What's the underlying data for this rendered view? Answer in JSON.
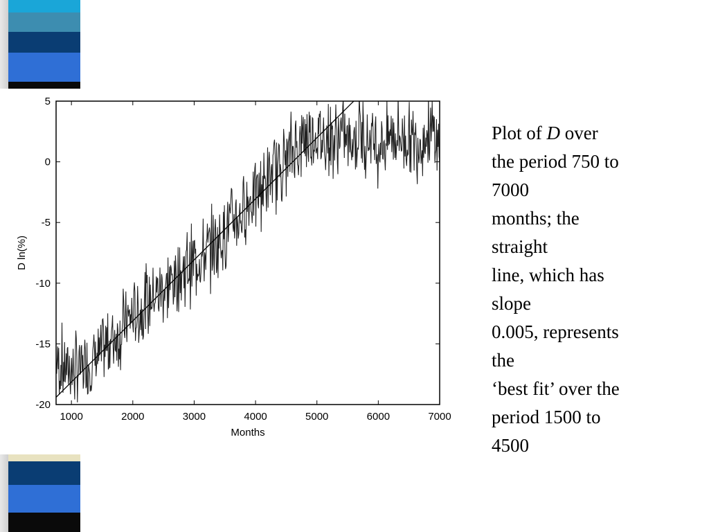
{
  "colors": {
    "data_line": "#222222",
    "fit_line": "#000000",
    "stripe_cyan": "#1aa6d8",
    "stripe_teal": "#3d8db0",
    "stripe_navy": "#0a3d73",
    "stripe_blue": "#2f6fd6",
    "stripe_black": "#0a0a0a",
    "stripe_cream": "#e8e2c0"
  },
  "caption": {
    "line1_pre": "Plot of ",
    "line1_em": "D",
    "line1_post": " over",
    "line2": "the period 750 to",
    "line3": "7000",
    "line4": "months; the",
    "line5": "straight",
    "line6": "line, which has",
    "line7": "slope",
    "line8": "0.005, represents",
    "line9": "the",
    "line10": "‘best fit’ over the",
    "line11": "period 1500 to",
    "line12": "4500"
  },
  "chart_data": {
    "type": "line",
    "title": "",
    "xlabel": "Months",
    "ylabel": "D  ln(%)",
    "xlim": [
      750,
      7000
    ],
    "ylim": [
      -20,
      5
    ],
    "xticks": [
      1000,
      2000,
      3000,
      4000,
      5000,
      6000,
      7000
    ],
    "yticks": [
      5,
      0,
      -5,
      -10,
      -15,
      -20
    ],
    "grid": false,
    "series": [
      {
        "x": [
          750,
          900,
          1050,
          1200,
          1350,
          1500,
          1650,
          1800,
          1950,
          2100,
          2250,
          2400,
          2550,
          2700,
          2850,
          3000,
          3150,
          3300,
          3450,
          3600,
          3750,
          3900,
          4050,
          4200,
          4350,
          4500,
          4650,
          4800,
          4950,
          5100,
          5250,
          5400,
          5550,
          5700,
          5850,
          6000,
          6150,
          6300,
          6450,
          6600,
          6750,
          6900,
          7000
        ],
        "y": [
          -16.5,
          -16.8,
          -17.2,
          -17.0,
          -16.3,
          -15.8,
          -14.6,
          -13.9,
          -13.0,
          -12.4,
          -11.6,
          -10.8,
          -10.2,
          -9.6,
          -8.9,
          -8.2,
          -7.8,
          -7.0,
          -6.2,
          -5.0,
          -4.4,
          -3.2,
          -2.3,
          -1.6,
          -0.6,
          0.4,
          1.2,
          2.0,
          2.4,
          2.0,
          1.8,
          2.2,
          1.6,
          2.4,
          2.1,
          1.4,
          1.9,
          2.3,
          2.0,
          1.6,
          2.1,
          2.4,
          1.0
        ]
      },
      {
        "name": "best fit",
        "x": [
          750,
          5600
        ],
        "y": [
          -19.4,
          5.0
        ]
      }
    ]
  }
}
